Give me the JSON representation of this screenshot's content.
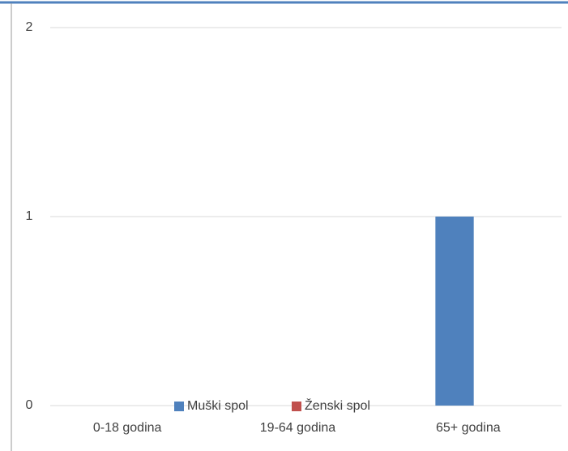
{
  "chart_data": {
    "type": "bar",
    "categories": [
      "0-18 godina",
      "19-64 godina",
      "65+ godina"
    ],
    "series": [
      {
        "name": "Muški spol",
        "color": "#4f81bd",
        "values": [
          0,
          0,
          1
        ]
      },
      {
        "name": "Ženski spol",
        "color": "#c0504d",
        "values": [
          0,
          0,
          0
        ]
      }
    ],
    "ylim": [
      0,
      2
    ],
    "yticks": [
      0,
      1,
      2
    ],
    "grid": true,
    "legend": "bottom"
  }
}
